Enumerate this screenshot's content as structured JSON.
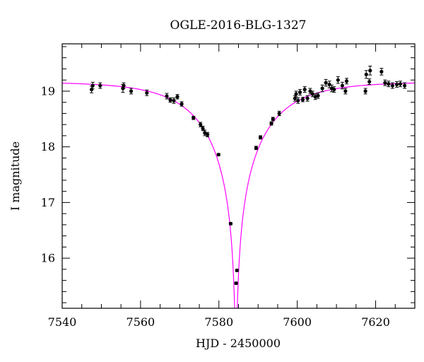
{
  "chart_data": {
    "type": "scatter",
    "title": "OGLE-2016-BLG-1327",
    "xlabel": "HJD - 2450000",
    "ylabel": "I magnitude",
    "xlim": [
      7540,
      7630
    ],
    "ylim": [
      19.85,
      15.1
    ],
    "y_inverted": true,
    "grid": false,
    "x_ticks": [
      7540,
      7560,
      7580,
      7600,
      7620
    ],
    "y_ticks": [
      16,
      17,
      18,
      19
    ],
    "colors": {
      "model": "#ff00ff",
      "points": "#000000",
      "axes": "#000000"
    },
    "model": {
      "type": "point-lens",
      "t0": 7584.35,
      "tE": 16.5,
      "u0": 0.0115,
      "base_mag": 19.17
    },
    "series": [
      {
        "x": [
          7547.5,
          7547.8,
          7549.7,
          7555.5,
          7555.7,
          7557.6,
          7561.6,
          7566.7,
          7567.6,
          7568.5,
          7569.4,
          7570.5,
          7573.5,
          7575.3,
          7575.9,
          7576.4,
          7577.1,
          7579.9,
          7583.0,
          7584.4,
          7584.6,
          7589.5,
          7590.6,
          7593.4,
          7593.8,
          7595.4,
          7599.4,
          7599.7,
          7600.2,
          7600.7,
          7601.4,
          7601.9,
          7602.6,
          7603.3,
          7603.9,
          7604.6,
          7605.3,
          7606.4,
          7607.3,
          7608.2,
          7608.8,
          7609.4,
          7610.4,
          7611.5,
          7612.3,
          7612.6,
          7617.4,
          7617.6,
          7618.4,
          7618.6,
          7621.5,
          7622.4,
          7623.3,
          7624.3,
          7625.4,
          7626.3,
          7627.4
        ],
        "y": [
          19.03,
          19.1,
          19.1,
          19.05,
          19.1,
          19.0,
          18.97,
          18.91,
          18.84,
          18.83,
          18.9,
          18.77,
          18.52,
          18.4,
          18.33,
          18.25,
          18.22,
          17.86,
          16.62,
          15.55,
          15.78,
          17.98,
          18.17,
          18.42,
          18.5,
          18.6,
          18.87,
          18.95,
          18.83,
          18.98,
          18.85,
          19.03,
          18.87,
          19.0,
          18.95,
          18.9,
          18.92,
          19.05,
          19.15,
          19.12,
          19.05,
          19.03,
          19.2,
          19.1,
          19.0,
          19.18,
          19.0,
          19.3,
          19.17,
          19.37,
          19.35,
          19.15,
          19.13,
          19.1,
          19.12,
          19.13,
          19.1
        ],
        "err": [
          0.06,
          0.06,
          0.05,
          0.07,
          0.05,
          0.05,
          0.05,
          0.05,
          0.04,
          0.05,
          0.04,
          0.04,
          0.03,
          0.04,
          0.04,
          0.05,
          0.04,
          0.02,
          0.02,
          0.02,
          0.02,
          0.03,
          0.03,
          0.03,
          0.03,
          0.04,
          0.05,
          0.05,
          0.05,
          0.05,
          0.04,
          0.05,
          0.05,
          0.05,
          0.05,
          0.05,
          0.05,
          0.06,
          0.06,
          0.06,
          0.06,
          0.05,
          0.06,
          0.06,
          0.05,
          0.05,
          0.05,
          0.07,
          0.05,
          0.08,
          0.06,
          0.05,
          0.05,
          0.05,
          0.05,
          0.05,
          0.05
        ]
      }
    ]
  }
}
